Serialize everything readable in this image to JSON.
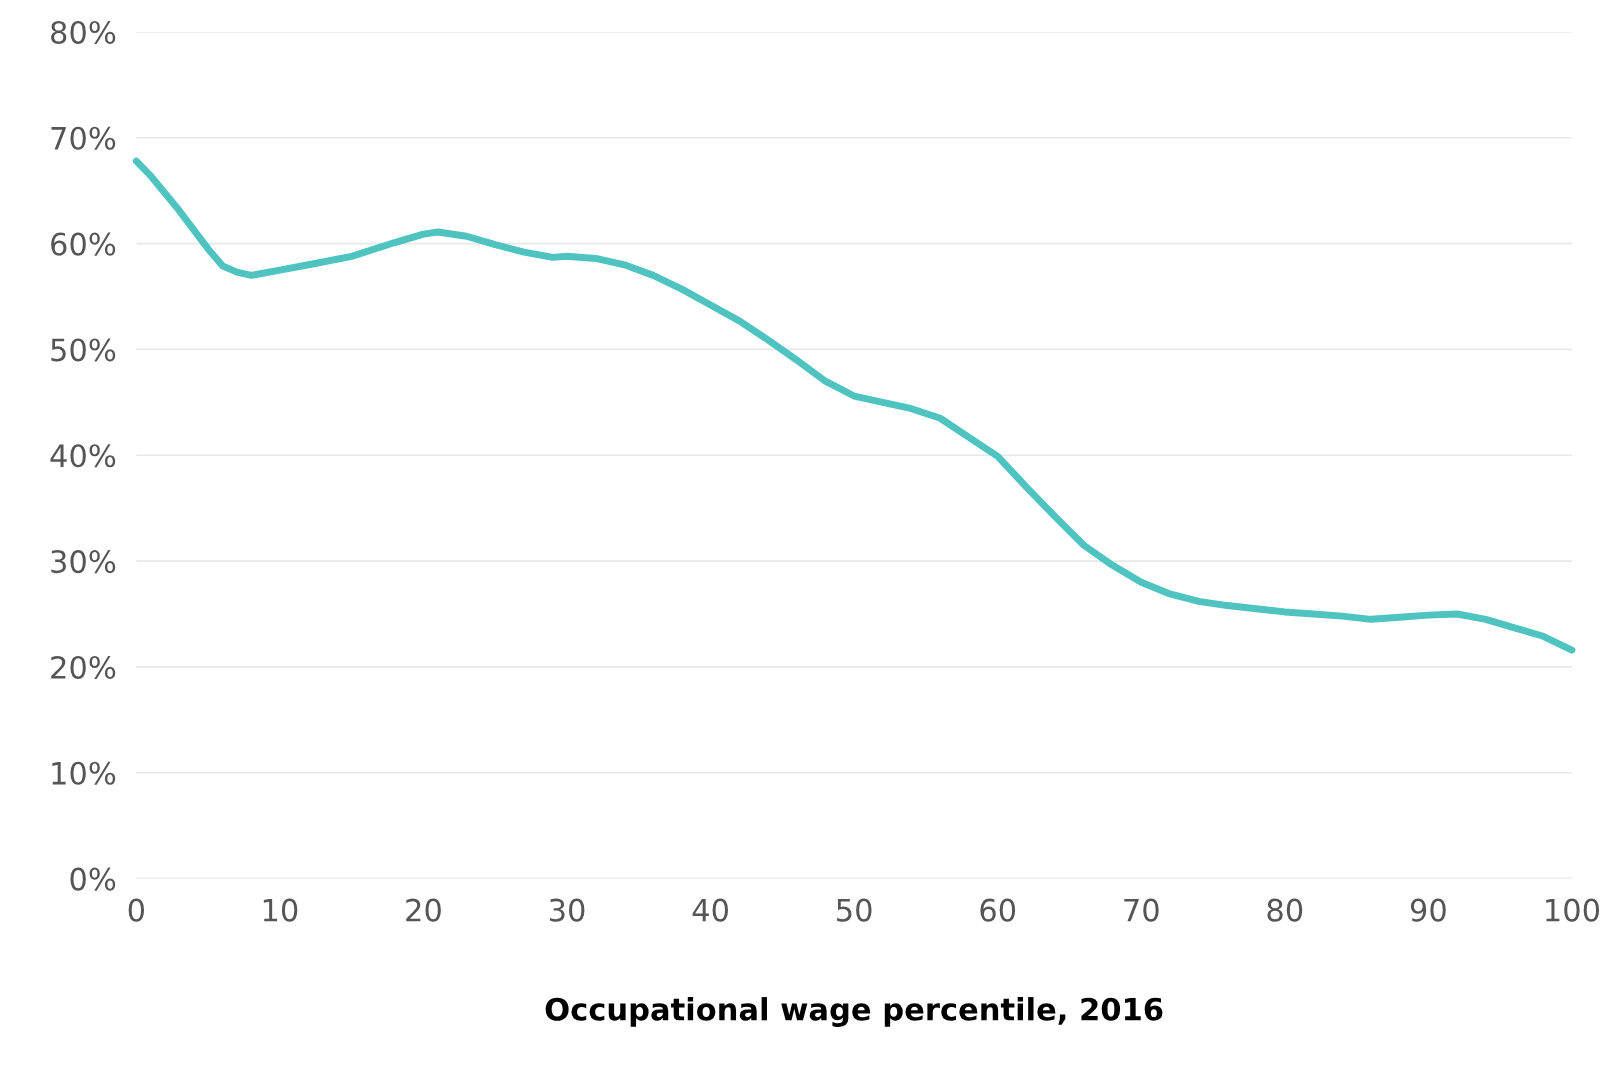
{
  "chart_data": {
    "type": "line",
    "xlabel": "Occupational wage percentile, 2016",
    "x": [
      0,
      1,
      3,
      5,
      6,
      7,
      8,
      10,
      12,
      15,
      18,
      20,
      21,
      23,
      25,
      27,
      29,
      30,
      32,
      34,
      36,
      38,
      40,
      42,
      44,
      46,
      48,
      50,
      52,
      54,
      56,
      58,
      60,
      62,
      64,
      66,
      68,
      70,
      72,
      74,
      76,
      78,
      80,
      82,
      84,
      86,
      88,
      90,
      92,
      94,
      96,
      98,
      100
    ],
    "series": [
      {
        "color": "#4fc3c0",
        "values": [
          67.8,
          66.4,
          63.1,
          59.5,
          57.9,
          57.3,
          57.0,
          57.5,
          58.0,
          58.8,
          60.1,
          60.9,
          61.1,
          60.7,
          59.9,
          59.2,
          58.7,
          58.8,
          58.6,
          58.0,
          57.0,
          55.7,
          54.2,
          52.7,
          50.9,
          49.0,
          47.0,
          45.6,
          45.0,
          44.4,
          43.5,
          41.7,
          39.9,
          37.0,
          34.2,
          31.5,
          29.6,
          28.0,
          26.9,
          26.2,
          25.8,
          25.5,
          25.2,
          25.0,
          24.8,
          24.5,
          24.7,
          24.9,
          25.0,
          24.5,
          23.7,
          22.9,
          21.6
        ]
      }
    ],
    "xlim": [
      0,
      100
    ],
    "xticks": [
      0,
      10,
      20,
      30,
      40,
      50,
      60,
      70,
      80,
      90,
      100
    ],
    "ylim": [
      0,
      80
    ],
    "yticks": [
      {
        "value": 0,
        "label": "0%"
      },
      {
        "value": 10,
        "label": "10%"
      },
      {
        "value": 20,
        "label": "20%"
      },
      {
        "value": 30,
        "label": "30%"
      },
      {
        "value": 40,
        "label": "40%"
      },
      {
        "value": 50,
        "label": "50%"
      },
      {
        "value": 60,
        "label": "60%"
      },
      {
        "value": 70,
        "label": "70%"
      },
      {
        "value": 80,
        "label": "80%"
      }
    ],
    "grid": "y",
    "line_style": "solid"
  }
}
